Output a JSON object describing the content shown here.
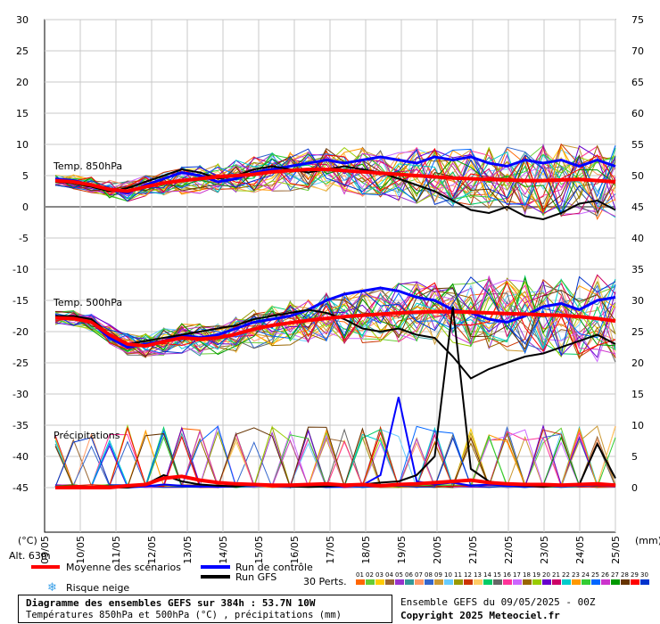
{
  "chart_data": {
    "type": "line",
    "x_ticks": [
      "10/05",
      "11/05",
      "12/05",
      "13/05",
      "14/05",
      "15/05",
      "16/05",
      "17/05",
      "18/05",
      "19/05",
      "20/05",
      "21/05",
      "22/05",
      "23/05",
      "24/05",
      "25/05"
    ],
    "left_axis": {
      "label": "(°C)",
      "ticks": [
        30,
        25,
        20,
        15,
        10,
        5,
        0,
        -5,
        -10,
        -15,
        -20,
        -25,
        -30,
        -35,
        -40,
        -45
      ],
      "range": [
        -45,
        30
      ]
    },
    "right_axis": {
      "label": "(mm)",
      "ticks": [
        75,
        70,
        65,
        60,
        55,
        50,
        45,
        40,
        35,
        30,
        25,
        20,
        15,
        10,
        5,
        0
      ],
      "range": [
        0,
        75
      ]
    },
    "panels": [
      "Temp. 850hPa",
      "Temp. 500hPa",
      "Précipitations"
    ],
    "altitude_label": "Alt. 63m",
    "legend": {
      "mean": "Moyenne des scénarios",
      "control": "Run de contrôle",
      "gfs": "Run GFS",
      "snow": "Risque neige",
      "perts": "30 Perts.",
      "pert_numbers": [
        "01",
        "02",
        "03",
        "04",
        "05",
        "06",
        "07",
        "08",
        "09",
        "10",
        "11",
        "12",
        "13",
        "14",
        "15",
        "16",
        "17",
        "18",
        "19",
        "20",
        "21",
        "22",
        "23",
        "24",
        "25",
        "26",
        "27",
        "28",
        "29",
        "30"
      ]
    },
    "pert_colors": [
      "#ff6600",
      "#66cc33",
      "#ffcc00",
      "#996633",
      "#9933cc",
      "#339999",
      "#ff9966",
      "#3366cc",
      "#cc9933",
      "#66ccff",
      "#999900",
      "#cc3300",
      "#ffcc66",
      "#00cc66",
      "#666666",
      "#ff3399",
      "#cc66ff",
      "#996600",
      "#99cc00",
      "#6600cc",
      "#cc0066",
      "#00cccc",
      "#ff9900",
      "#33cc33",
      "#0066ff",
      "#cc33cc",
      "#009900",
      "#663300",
      "#ff0000",
      "#0033cc"
    ],
    "series": {
      "t850_mean": [
        4.2,
        4.0,
        3.5,
        2.8,
        2.5,
        3.2,
        3.8,
        4.2,
        4.5,
        4.8,
        5.0,
        5.2,
        5.6,
        5.8,
        6.0,
        6.0,
        5.8,
        5.6,
        5.4,
        5.2,
        5.0,
        4.8,
        4.6,
        4.5,
        4.4,
        4.3,
        4.2,
        4.2,
        4.3,
        4.4,
        4.2,
        4.0
      ],
      "t850_control": [
        4.5,
        4.2,
        3.5,
        2.8,
        2.2,
        3.5,
        4.5,
        5.5,
        5.0,
        4.0,
        4.5,
        5.5,
        6.0,
        6.5,
        7.0,
        7.5,
        7.0,
        7.5,
        8.0,
        7.5,
        7.0,
        8.0,
        7.5,
        8.0,
        7.0,
        6.5,
        7.5,
        7.0,
        7.5,
        6.5,
        7.5,
        6.5
      ],
      "t850_gfs": [
        4.0,
        3.8,
        3.2,
        2.5,
        3.0,
        4.0,
        5.0,
        6.0,
        5.5,
        4.5,
        5.0,
        6.0,
        6.5,
        6.0,
        5.5,
        6.0,
        6.5,
        6.0,
        5.5,
        4.5,
        3.5,
        2.5,
        1.0,
        -0.5,
        -1.0,
        0.0,
        -1.5,
        -2.0,
        -1.0,
        0.5,
        1.0,
        -0.5
      ],
      "t500_mean": [
        -17.8,
        -17.9,
        -18.5,
        -20.5,
        -22.0,
        -22.3,
        -21.6,
        -21.0,
        -21.2,
        -21.0,
        -20.4,
        -19.6,
        -19.0,
        -18.6,
        -18.2,
        -17.9,
        -17.6,
        -17.4,
        -17.2,
        -17.0,
        -16.9,
        -16.8,
        -16.8,
        -16.9,
        -17.0,
        -17.1,
        -17.2,
        -17.3,
        -17.4,
        -17.6,
        -17.9,
        -18.3
      ],
      "t500_control": [
        -17.5,
        -17.8,
        -18.5,
        -21.0,
        -22.5,
        -22.0,
        -21.5,
        -20.5,
        -21.0,
        -20.5,
        -19.5,
        -18.5,
        -18.0,
        -17.5,
        -16.5,
        -15.0,
        -14.0,
        -13.5,
        -13.0,
        -13.5,
        -14.5,
        -15.0,
        -16.5,
        -17.0,
        -18.0,
        -18.5,
        -17.5,
        -16.0,
        -15.5,
        -16.5,
        -15.0,
        -14.5
      ],
      "t500_gfs": [
        -17.5,
        -17.5,
        -18.0,
        -20.5,
        -22.0,
        -21.5,
        -21.0,
        -20.5,
        -20.0,
        -19.5,
        -19.0,
        -18.0,
        -17.5,
        -17.0,
        -16.5,
        -17.0,
        -18.0,
        -19.5,
        -20.0,
        -19.5,
        -20.5,
        -21.0,
        -24.0,
        -27.5,
        -26.0,
        -25.0,
        -24.0,
        -23.5,
        -22.5,
        -21.5,
        -20.5,
        -22.0
      ],
      "precip_mean": [
        0,
        0,
        0,
        0,
        0.3,
        0.5,
        1.5,
        1.8,
        1.2,
        0.8,
        0.6,
        0.5,
        0.4,
        0.4,
        0.5,
        0.6,
        0.4,
        0.5,
        0.3,
        0.5,
        0.6,
        0.8,
        1.0,
        1.2,
        0.8,
        0.6,
        0.5,
        0.5,
        0.4,
        0.5,
        0.6,
        0.4
      ],
      "precip_control": [
        0,
        0,
        0,
        0,
        0,
        0.2,
        0.5,
        0.3,
        0.2,
        0.1,
        0.2,
        0.5,
        0.3,
        0.2,
        0.3,
        0.1,
        0.2,
        0.4,
        2.0,
        14.5,
        1.0,
        0.5,
        0.8,
        0.3,
        0.5,
        0.3,
        0.2,
        0.5,
        0.3,
        0.4,
        0.5,
        0.3
      ],
      "precip_gfs": [
        0,
        0,
        0,
        0,
        0,
        0.5,
        2.0,
        1.0,
        0.5,
        0.3,
        0.2,
        0.5,
        0.3,
        0.2,
        0.1,
        0.2,
        0.3,
        0.5,
        0.8,
        1.0,
        2.0,
        5.0,
        29.0,
        3.0,
        1.0,
        0.5,
        0.3,
        0.2,
        0.3,
        0.5,
        7.0,
        1.5
      ]
    }
  },
  "footer": {
    "title": "Diagramme des ensembles GEFS sur 384h : 53.7N 10W",
    "subtitle": "Températures 850hPa et 500hPa (°C) , précipitations (mm)",
    "run": "Ensemble GEFS du 09/05/2025 - 00Z",
    "copyright": "Copyright 2025 Meteociel.fr"
  }
}
